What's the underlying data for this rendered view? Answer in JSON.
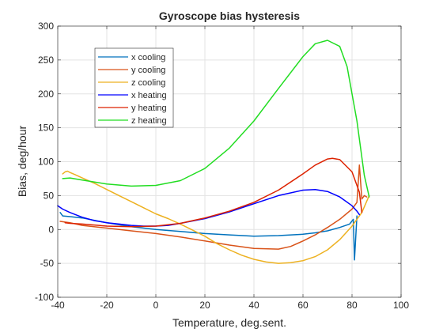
{
  "chart_data": {
    "type": "line",
    "title": "Gyroscope bias hysteresis",
    "xlabel": "Temperature, deg.sent.",
    "ylabel": "Bias, deg/hour",
    "xlim": [
      -40,
      100
    ],
    "ylim": [
      -100,
      300
    ],
    "xticks": [
      "-40",
      "-20",
      "0",
      "20",
      "40",
      "60",
      "80",
      "100"
    ],
    "yticks": [
      "-100",
      "-50",
      "0",
      "50",
      "100",
      "150",
      "200",
      "250",
      "300"
    ],
    "xtick_values": [
      -40,
      -20,
      0,
      20,
      40,
      60,
      80,
      100
    ],
    "ytick_values": [
      -100,
      -50,
      0,
      50,
      100,
      150,
      200,
      250,
      300
    ],
    "grid": true,
    "legend_position": "top-left",
    "series": [
      {
        "name": "x cooling",
        "color": "#0072BD",
        "x": [
          -39,
          -38,
          -35,
          -30,
          -20,
          -10,
          0,
          10,
          20,
          30,
          40,
          50,
          60,
          65,
          70,
          75,
          79,
          80.5,
          81,
          82
        ],
        "y": [
          25,
          20,
          19,
          17,
          10,
          4,
          0,
          -3,
          -6,
          -8,
          -10,
          -9,
          -7,
          -5,
          -2,
          3,
          8,
          15,
          -45,
          20
        ]
      },
      {
        "name": "y cooling",
        "color": "#D95319",
        "x": [
          -39,
          -35,
          -30,
          -20,
          -10,
          0,
          10,
          20,
          30,
          40,
          50,
          55,
          60,
          65,
          70,
          75,
          80,
          82,
          83,
          84,
          85,
          86
        ],
        "y": [
          12,
          10,
          6,
          2,
          -2,
          -6,
          -11,
          -17,
          -23,
          -28,
          -29,
          -25,
          -17,
          -8,
          3,
          15,
          30,
          40,
          95,
          45,
          50,
          48
        ]
      },
      {
        "name": "z cooling",
        "color": "#EDB120",
        "x": [
          87,
          84,
          80,
          75,
          70,
          65,
          60,
          55,
          50,
          45,
          40,
          35,
          30,
          25,
          20,
          15,
          10,
          5,
          0,
          -5,
          -10,
          -15,
          -20,
          -25,
          -30,
          -33,
          -35,
          -36,
          -37,
          -38
        ],
        "y": [
          50,
          25,
          5,
          -15,
          -30,
          -40,
          -46,
          -49,
          -50,
          -48,
          -44,
          -38,
          -30,
          -21,
          -10,
          -1,
          8,
          16,
          23,
          32,
          41,
          50,
          59,
          68,
          76,
          81,
          84,
          86,
          85,
          82
        ]
      },
      {
        "name": "x heating",
        "color": "#0000FF",
        "x": [
          -40,
          -38,
          -35,
          -30,
          -25,
          -20,
          -15,
          -10,
          -5,
          0,
          5,
          10,
          20,
          30,
          40,
          50,
          60,
          65,
          70,
          75,
          80,
          82,
          83
        ],
        "y": [
          35,
          30,
          25,
          18,
          13,
          10,
          8,
          6,
          5,
          5,
          6,
          9,
          16,
          26,
          38,
          50,
          58,
          59,
          56,
          48,
          35,
          27,
          22
        ]
      },
      {
        "name": "y heating",
        "color": "#DD2200",
        "x": [
          -37,
          -35,
          -30,
          -20,
          -10,
          0,
          10,
          20,
          30,
          40,
          50,
          60,
          65,
          70,
          72,
          75,
          80,
          83,
          84
        ],
        "y": [
          10,
          9,
          8,
          5,
          4,
          5,
          9,
          17,
          27,
          40,
          58,
          82,
          95,
          104,
          105,
          103,
          85,
          55,
          25
        ]
      },
      {
        "name": "z heating",
        "color": "#22DD22",
        "x": [
          -38,
          -35,
          -30,
          -20,
          -10,
          0,
          10,
          20,
          30,
          40,
          50,
          60,
          65,
          70,
          75,
          78,
          82,
          85,
          87
        ],
        "y": [
          75,
          76,
          73,
          67,
          64,
          65,
          72,
          90,
          120,
          160,
          208,
          255,
          274,
          279,
          270,
          240,
          160,
          80,
          48
        ]
      }
    ]
  }
}
